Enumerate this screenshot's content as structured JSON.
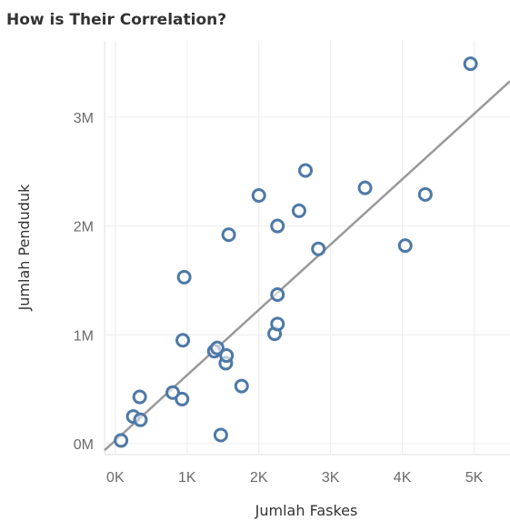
{
  "title": "How is Their Correlation?",
  "chart_data": {
    "type": "scatter",
    "xlabel": "Jumlah Faskes",
    "ylabel": "Jumlah Penduduk",
    "xlim": [
      -150,
      5500
    ],
    "ylim": [
      -100000,
      3700000
    ],
    "x_ticks": [
      {
        "value": 0,
        "label": "0K"
      },
      {
        "value": 1000,
        "label": "1K"
      },
      {
        "value": 2000,
        "label": "2K"
      },
      {
        "value": 3000,
        "label": "3K"
      },
      {
        "value": 4000,
        "label": "4K"
      },
      {
        "value": 5000,
        "label": "5K"
      }
    ],
    "y_ticks": [
      {
        "value": 0,
        "label": "0M"
      },
      {
        "value": 1000000,
        "label": "1M"
      },
      {
        "value": 2000000,
        "label": "2M"
      },
      {
        "value": 3000000,
        "label": "3M"
      }
    ],
    "grid": true,
    "marker_color": "#4e79a7",
    "trend_color": "#999999",
    "trend_line": {
      "intercept": 30000,
      "slope": 600
    },
    "points": [
      {
        "x": 80,
        "y": 30000
      },
      {
        "x": 250,
        "y": 250000
      },
      {
        "x": 340,
        "y": 430000
      },
      {
        "x": 350,
        "y": 220000
      },
      {
        "x": 800,
        "y": 470000
      },
      {
        "x": 930,
        "y": 410000
      },
      {
        "x": 940,
        "y": 950000
      },
      {
        "x": 960,
        "y": 1530000
      },
      {
        "x": 1380,
        "y": 850000
      },
      {
        "x": 1420,
        "y": 880000
      },
      {
        "x": 1470,
        "y": 80000
      },
      {
        "x": 1540,
        "y": 740000
      },
      {
        "x": 1550,
        "y": 810000
      },
      {
        "x": 1580,
        "y": 1920000
      },
      {
        "x": 1760,
        "y": 530000
      },
      {
        "x": 2000,
        "y": 2280000
      },
      {
        "x": 2220,
        "y": 1010000
      },
      {
        "x": 2260,
        "y": 1100000
      },
      {
        "x": 2260,
        "y": 1370000
      },
      {
        "x": 2260,
        "y": 2000000
      },
      {
        "x": 2560,
        "y": 2140000
      },
      {
        "x": 2650,
        "y": 2510000
      },
      {
        "x": 2830,
        "y": 1790000
      },
      {
        "x": 3480,
        "y": 2350000
      },
      {
        "x": 4040,
        "y": 1820000
      },
      {
        "x": 4320,
        "y": 2290000
      },
      {
        "x": 4950,
        "y": 3490000
      }
    ]
  }
}
